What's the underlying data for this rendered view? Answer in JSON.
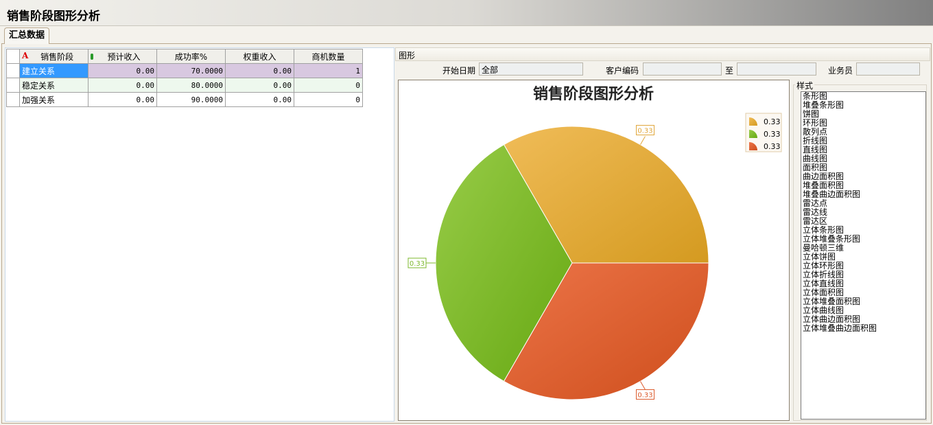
{
  "window": {
    "title": "销售阶段图形分析"
  },
  "tabs": [
    {
      "label": "汇总数据"
    }
  ],
  "grid": {
    "columns": [
      "销售阶段",
      "预计收入",
      "成功率%",
      "权重收入",
      "商机数量"
    ],
    "rows": [
      [
        "建立关系",
        "0.00",
        "70.0000",
        "0.00",
        "1"
      ],
      [
        "稳定关系",
        "0.00",
        "80.0000",
        "0.00",
        "0"
      ],
      [
        "加强关系",
        "0.00",
        "90.0000",
        "0.00",
        "0"
      ]
    ]
  },
  "chart_panel": {
    "header": "图形",
    "filters": {
      "start_date_label": "开始日期",
      "start_date_value": "全部",
      "customer_code_label": "客户编码",
      "customer_code_value": "",
      "to_label": "至",
      "to_value": "",
      "salesperson_label": "业务员",
      "salesperson_value": ""
    },
    "style_label": "样式",
    "style_options": [
      "条形图",
      "堆叠条形图",
      "饼图",
      "环形图",
      "散列点",
      "折线图",
      "直线图",
      "曲线图",
      "面积图",
      "曲边面积图",
      "堆叠面积图",
      "堆叠曲边面积图",
      "雷达点",
      "雷达线",
      "雷达区",
      "立体条形图",
      "立体堆叠条形图",
      "曼哈顿三维",
      "立体饼图",
      "立体环形图",
      "立体折线图",
      "立体直线图",
      "立体面积图",
      "立体堆叠面积图",
      "立体曲线图",
      "立体曲边面积图",
      "立体堆叠曲边面积图"
    ],
    "selected_style": "饼图"
  },
  "chart_data": {
    "type": "pie",
    "title": "销售阶段图形分析",
    "slices": [
      {
        "label": "0.33",
        "value": 0.33,
        "color": "#e0a63a"
      },
      {
        "label": "0.33",
        "value": 0.33,
        "color": "#7cb82c"
      },
      {
        "label": "0.33",
        "value": 0.33,
        "color": "#dc5a2c"
      }
    ],
    "legend": "top-right"
  }
}
